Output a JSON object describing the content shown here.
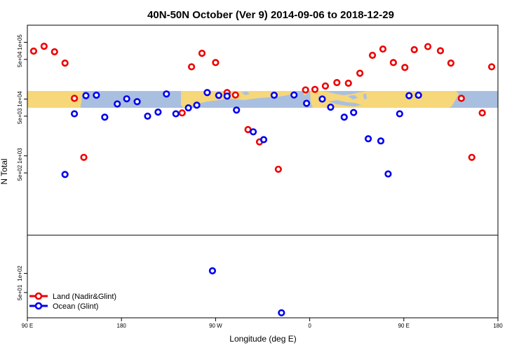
{
  "chart_data": {
    "type": "scatter",
    "title": "40N-50N October (Ver 9)   2014-09-06 to 2018-12-29",
    "xlabel": "Longitude (deg E)",
    "ylabel": "N Total",
    "x_ticks": [
      "90 E",
      "180",
      "90 W",
      "0",
      "90 E",
      "180"
    ],
    "x_tick_values": [
      90,
      180,
      270,
      360,
      450,
      540
    ],
    "xlim": [
      90,
      540
    ],
    "y_scale": "log",
    "ylim_upper": [
      40,
      200000
    ],
    "ylim_lower": [
      20,
      400
    ],
    "y_ticks_upper": [
      "5e+02",
      "1e+03",
      "5e+03",
      "1e+04",
      "5e+04",
      "1e+05"
    ],
    "y_tick_values_upper": [
      500,
      1000,
      5000,
      10000,
      50000,
      100000
    ],
    "y_ticks_lower": [
      "5e+01",
      "1e+02"
    ],
    "y_tick_values_lower": [
      50,
      100
    ],
    "legend_position": "bottom-left",
    "series": [
      {
        "name": "Land (Nadir&Glint)",
        "color": "#ee0000",
        "panel": "upper",
        "x": [
          96,
          106,
          116,
          126,
          135,
          144,
          238,
          247,
          257,
          270,
          281,
          289,
          301,
          312,
          330,
          356,
          365,
          375,
          386,
          397,
          408,
          420,
          430,
          440,
          451,
          460,
          473,
          485,
          495,
          505,
          515,
          525,
          534
        ],
        "y": [
          70000,
          85000,
          68000,
          43000,
          10300,
          940,
          5700,
          37000,
          64000,
          44000,
          13000,
          11800,
          2900,
          1760,
          580,
          14500,
          14800,
          17000,
          19500,
          19000,
          28500,
          59000,
          76000,
          44000,
          36000,
          74000,
          84000,
          71000,
          43000,
          10300,
          940,
          5700,
          37000
        ]
      },
      {
        "name": "Ocean (Glint)",
        "color": "#0000ee",
        "panel": "upper",
        "x": [
          126,
          135,
          146,
          156,
          164,
          176,
          185,
          195,
          205,
          215,
          223,
          232,
          244,
          252,
          262,
          273,
          281,
          290,
          306,
          316,
          326,
          345,
          357,
          372,
          380,
          393,
          402,
          416,
          428,
          435,
          446,
          455,
          464
        ],
        "y": [
          470,
          5500,
          11500,
          11700,
          4800,
          8200,
          10100,
          9000,
          5000,
          5900,
          12300,
          5500,
          7000,
          7800,
          13000,
          11600,
          11300,
          6400,
          2650,
          1930,
          11700,
          11800,
          8400,
          10000,
          7200,
          4800,
          5800,
          2000,
          1830,
          480,
          5500,
          11500,
          11700
        ]
      },
      {
        "name": "Ocean (Glint)",
        "color": "#0000ee",
        "panel": "lower",
        "x": [
          267,
          333
        ],
        "y": [
          110,
          24
        ]
      }
    ]
  },
  "legend": {
    "land_label": "Land (Nadir&Glint)",
    "ocean_label": "Ocean (Glint)"
  },
  "colors": {
    "land_marker": "#ee0000",
    "ocean_marker": "#0000ee",
    "map_ocean": "#a9bfe0",
    "map_land": "#f6d779"
  }
}
